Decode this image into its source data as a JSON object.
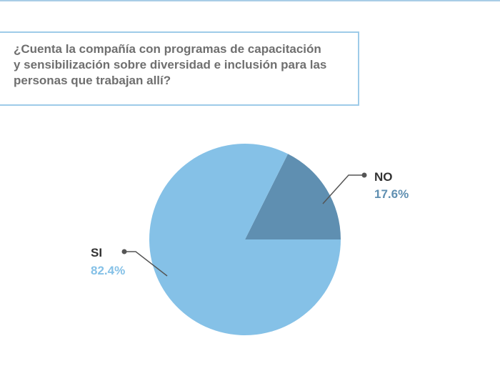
{
  "question": {
    "text": "¿Cuenta la compañía con programas de capacitación\ny sensibilización sobre diversidad e inclusión para las\npersonas que trabajan allí?"
  },
  "colors": {
    "frame": "#9ecbe8",
    "question_text": "#6f6f6f",
    "leader_line": "#555555"
  },
  "chart_data": {
    "type": "pie",
    "title": "",
    "slices": [
      {
        "label": "NO",
        "value": 17.6,
        "value_label": "17.6%",
        "color": "#5f8fb1"
      },
      {
        "label": "SI",
        "value": 82.4,
        "value_label": "82.4%",
        "color": "#85c1e7"
      }
    ],
    "start_angle_deg": 90,
    "direction": "counterclockwise"
  }
}
